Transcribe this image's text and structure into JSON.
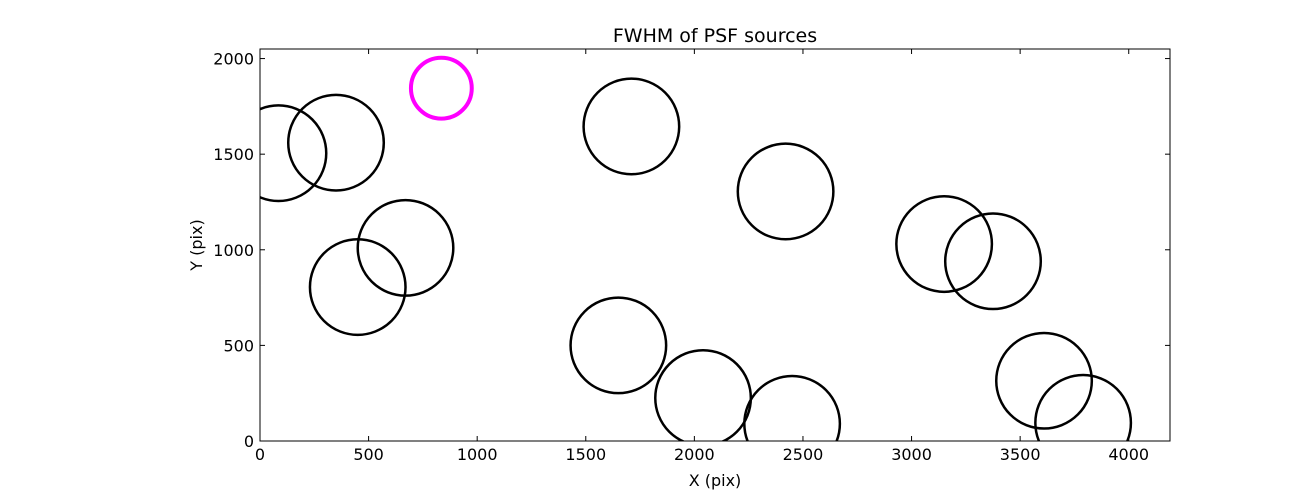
{
  "chart_data": {
    "type": "scatter",
    "title": "FWHM of PSF sources",
    "xlabel": "X (pix)",
    "ylabel": "Y (pix)",
    "xlim": [
      0,
      4190
    ],
    "ylim": [
      0,
      2050
    ],
    "xticks": [
      "0",
      "500",
      "1000",
      "1500",
      "2000",
      "2500",
      "3000",
      "3500",
      "4000"
    ],
    "xtick_values": [
      0,
      500,
      1000,
      1500,
      2000,
      2500,
      3000,
      3500,
      4000
    ],
    "yticks": [
      "0",
      "500",
      "1000",
      "1500",
      "2000"
    ],
    "ytick_values": [
      0,
      500,
      1000,
      1500,
      2000
    ],
    "grid": false,
    "marker": "open-circle",
    "points": [
      {
        "x": 85,
        "y": 1505,
        "fwhm": 220,
        "color": "#000000"
      },
      {
        "x": 350,
        "y": 1560,
        "fwhm": 220,
        "color": "#000000"
      },
      {
        "x": 835,
        "y": 1845,
        "fwhm": 140,
        "color": "#ff00ff"
      },
      {
        "x": 670,
        "y": 1010,
        "fwhm": 220,
        "color": "#000000"
      },
      {
        "x": 450,
        "y": 805,
        "fwhm": 220,
        "color": "#000000"
      },
      {
        "x": 1710,
        "y": 1645,
        "fwhm": 220,
        "color": "#000000"
      },
      {
        "x": 1650,
        "y": 500,
        "fwhm": 220,
        "color": "#000000"
      },
      {
        "x": 2040,
        "y": 225,
        "fwhm": 220,
        "color": "#000000"
      },
      {
        "x": 2450,
        "y": 90,
        "fwhm": 220,
        "color": "#000000"
      },
      {
        "x": 2420,
        "y": 1305,
        "fwhm": 220,
        "color": "#000000"
      },
      {
        "x": 3150,
        "y": 1030,
        "fwhm": 220,
        "color": "#000000"
      },
      {
        "x": 3375,
        "y": 940,
        "fwhm": 220,
        "color": "#000000"
      },
      {
        "x": 3610,
        "y": 315,
        "fwhm": 220,
        "color": "#000000"
      },
      {
        "x": 3790,
        "y": 95,
        "fwhm": 220,
        "color": "#000000"
      }
    ]
  }
}
